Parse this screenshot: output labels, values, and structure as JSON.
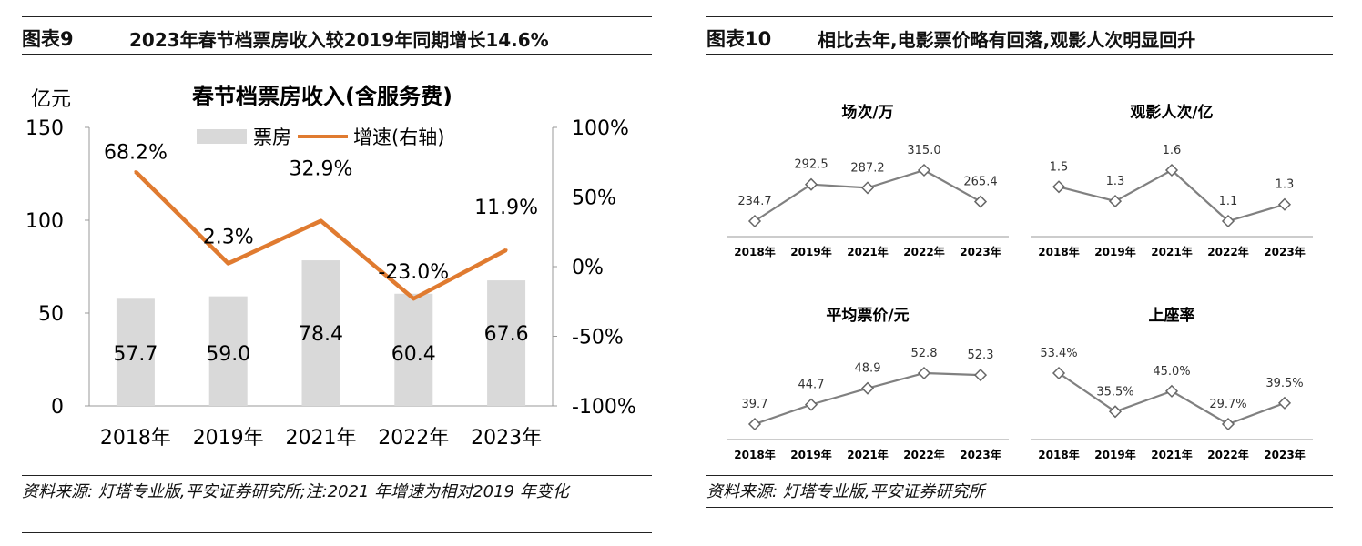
{
  "fig9": {
    "label": "图表9",
    "title": "2023年春节档票房收入较2019年同期增长14.6%",
    "source": "资料来源: 灯塔专业版,平安证券研究所;注:2021 年增速为相对2019 年变化"
  },
  "fig10": {
    "label": "图表10",
    "title": "相比去年,电影票价略有回落,观影人次明显回升",
    "source": "资料来源: 灯塔专业版,平安证券研究所"
  },
  "chart_data": [
    {
      "type": "bar",
      "title": "春节档票房收入(含服务费)",
      "ylabel": "亿元",
      "categories": [
        "2018年",
        "2019年",
        "2021年",
        "2022年",
        "2023年"
      ],
      "ylim": [
        0,
        150
      ],
      "yticks": [
        "0",
        "50",
        "100",
        "150"
      ],
      "y2lim": [
        -100,
        100
      ],
      "y2ticks": [
        "-100%",
        "-50%",
        "0%",
        "50%",
        "100%"
      ],
      "series": [
        {
          "name": "票房",
          "type": "bar",
          "color": "#d9d9d9",
          "values": [
            57.7,
            59.0,
            78.4,
            60.4,
            67.6
          ],
          "labels": [
            "57.7",
            "59.0",
            "78.4",
            "60.4",
            "67.6"
          ]
        },
        {
          "name": "增速(右轴)",
          "type": "line",
          "axis": "right",
          "color": "#e07b30",
          "values": [
            68.2,
            2.3,
            32.9,
            -23.0,
            11.9
          ],
          "labels": [
            "68.2%",
            "2.3%",
            "32.9%",
            "-23.0%",
            "11.9%"
          ]
        }
      ]
    },
    {
      "type": "line",
      "title": "场次/万",
      "categories": [
        "2018年",
        "2019年",
        "2021年",
        "2022年",
        "2023年"
      ],
      "values": [
        234.7,
        292.5,
        287.2,
        315.0,
        265.4
      ],
      "labels": [
        "234.7",
        "292.5",
        "287.2",
        "315.0",
        "265.4"
      ],
      "color": "#808080"
    },
    {
      "type": "line",
      "title": "观影人次/亿",
      "categories": [
        "2018年",
        "2019年",
        "2021年",
        "2022年",
        "2023年"
      ],
      "values": [
        1.45,
        1.32,
        1.6,
        1.14,
        1.29
      ],
      "labels": [
        "1.5",
        "1.3",
        "1.6",
        "1.1",
        "1.3"
      ],
      "color": "#808080"
    },
    {
      "type": "line",
      "title": "平均票价/元",
      "categories": [
        "2018年",
        "2019年",
        "2021年",
        "2022年",
        "2023年"
      ],
      "values": [
        39.7,
        44.7,
        48.9,
        52.8,
        52.3
      ],
      "labels": [
        "39.7",
        "44.7",
        "48.9",
        "52.8",
        "52.3"
      ],
      "color": "#808080"
    },
    {
      "type": "line",
      "title": "上座率",
      "categories": [
        "2018年",
        "2019年",
        "2021年",
        "2022年",
        "2023年"
      ],
      "values": [
        53.4,
        35.5,
        45.0,
        29.7,
        39.5
      ],
      "labels": [
        "53.4%",
        "35.5%",
        "45.0%",
        "29.7%",
        "39.5%"
      ],
      "color": "#808080"
    }
  ]
}
